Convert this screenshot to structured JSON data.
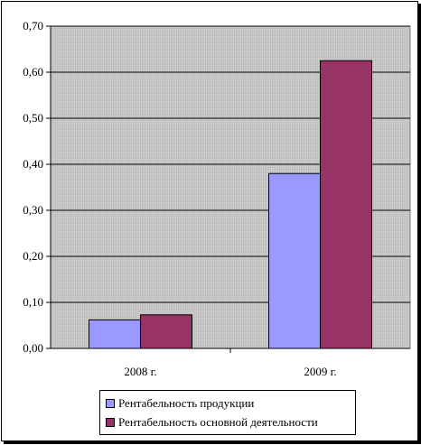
{
  "chart_data": {
    "type": "bar",
    "categories": [
      "2008 г.",
      "2009 г."
    ],
    "series": [
      {
        "name": "Рентабельность продукции",
        "values": [
          0.062,
          0.38
        ],
        "color": "#9999ff"
      },
      {
        "name": "Рентабельность основной деятельности",
        "values": [
          0.073,
          0.625
        ],
        "color": "#993366"
      }
    ],
    "ylim": [
      0,
      0.7
    ],
    "yticks": [
      "0,00",
      "0,10",
      "0,20",
      "0,30",
      "0,40",
      "0,50",
      "0,60",
      "0,70"
    ],
    "grid": true,
    "plot_background": "#c0c0c0",
    "legend_position": "bottom",
    "title": "",
    "xlabel": "",
    "ylabel": ""
  }
}
